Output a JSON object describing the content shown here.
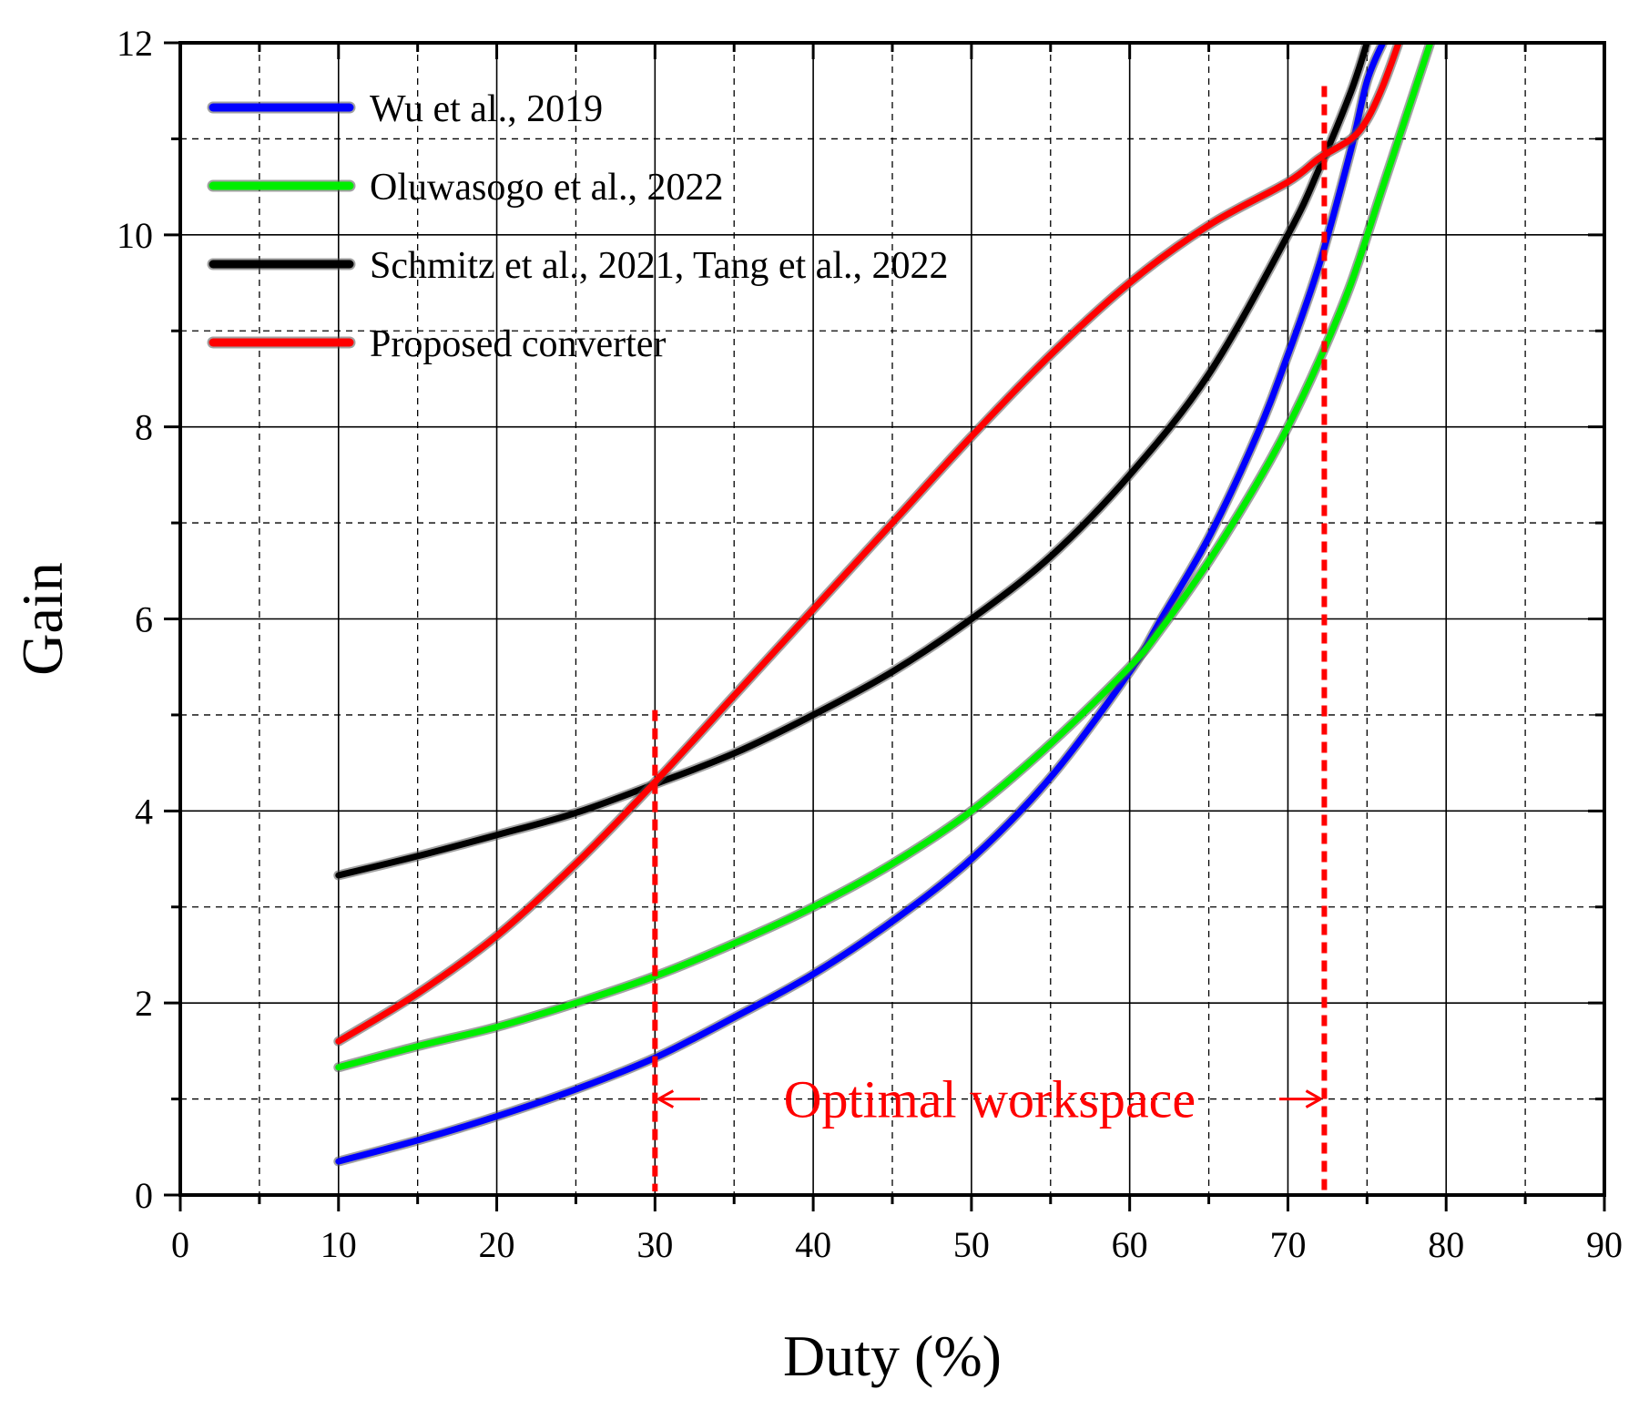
{
  "chart_data": {
    "type": "line",
    "xlabel": "Duty (%)",
    "ylabel": "Gain",
    "xlim": [
      0,
      90
    ],
    "ylim": [
      0,
      12
    ],
    "x_ticks": [
      "0",
      "10",
      "20",
      "30",
      "40",
      "50",
      "60",
      "70",
      "80",
      "90"
    ],
    "y_ticks": [
      "0",
      "2",
      "4",
      "6",
      "8",
      "10",
      "12"
    ],
    "grid": true,
    "legend_position": "top-left",
    "series": [
      {
        "name": "Wu et al., 2019",
        "color": "#0000ff",
        "x": [
          10,
          15,
          20,
          25,
          30,
          35,
          40,
          45,
          50,
          55,
          60,
          62,
          65,
          68,
          70,
          72,
          74,
          75,
          76
        ],
        "y": [
          0.35,
          0.57,
          0.82,
          1.1,
          1.43,
          1.85,
          2.3,
          2.85,
          3.5,
          4.35,
          5.45,
          6.0,
          6.85,
          7.9,
          8.75,
          9.7,
          10.9,
          11.6,
          12.0
        ]
      },
      {
        "name": "Oluwasogo et al., 2022",
        "color": "#00ee00",
        "x": [
          10,
          15,
          20,
          25,
          30,
          35,
          40,
          45,
          50,
          55,
          60,
          62,
          65,
          68,
          70,
          72,
          74,
          76,
          78,
          79
        ],
        "y": [
          1.33,
          1.55,
          1.75,
          2.0,
          2.28,
          2.62,
          3.0,
          3.45,
          4.0,
          4.7,
          5.5,
          5.9,
          6.6,
          7.4,
          8.0,
          8.7,
          9.5,
          10.5,
          11.5,
          12.0
        ]
      },
      {
        "name": "Schmitz et al., 2021, Tang et al., 2022",
        "color": "#000000",
        "x": [
          10,
          15,
          20,
          25,
          30,
          35,
          40,
          45,
          50,
          55,
          60,
          65,
          70,
          72,
          74,
          75
        ],
        "y": [
          3.33,
          3.53,
          3.75,
          3.98,
          4.28,
          4.6,
          5.0,
          5.45,
          6.0,
          6.65,
          7.5,
          8.55,
          10.0,
          10.7,
          11.5,
          12.0
        ]
      },
      {
        "name": "Proposed converter",
        "color": "#ff0000",
        "x": [
          10,
          15,
          20,
          25,
          30,
          35,
          40,
          45,
          50,
          55,
          60,
          65,
          70,
          72,
          74,
          75,
          76,
          77
        ],
        "y": [
          1.6,
          2.1,
          2.7,
          3.45,
          4.3,
          5.2,
          6.1,
          7.0,
          7.9,
          8.75,
          9.5,
          10.1,
          10.55,
          10.8,
          11.0,
          11.2,
          11.55,
          12.0
        ]
      }
    ],
    "annotations": {
      "text": "Optimal workspace",
      "color": "#ff0000",
      "x_start": 30,
      "x_end": 72.3,
      "arrow_y": 1.0,
      "line_top_left": 5.05,
      "line_top_right": 11.55
    }
  }
}
